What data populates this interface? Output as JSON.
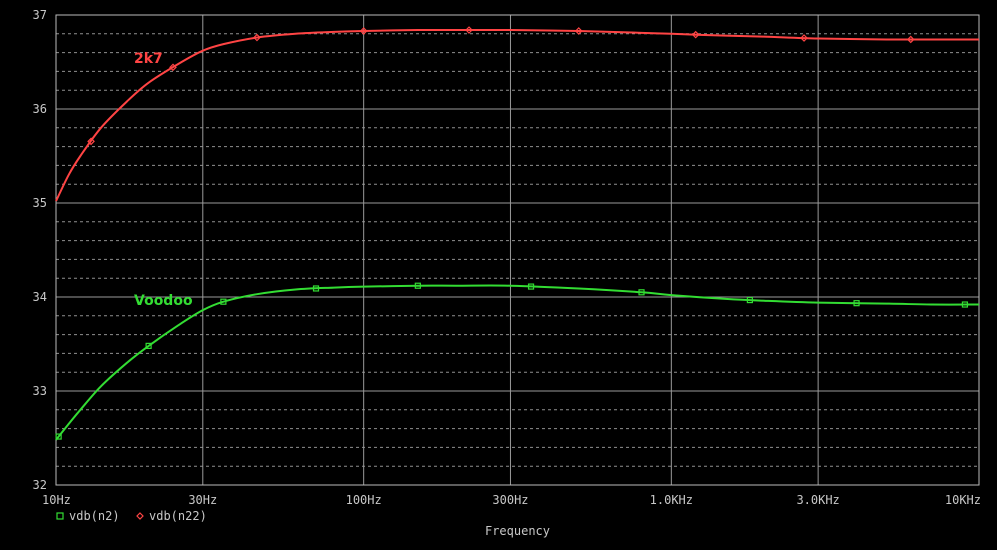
{
  "chart_data": {
    "type": "line",
    "xlabel": "Frequency",
    "x_scale": "log",
    "xlim": [
      10,
      10000
    ],
    "ylim": [
      32,
      37
    ],
    "grid": true,
    "x_ticks": [
      {
        "value": 10,
        "label": "10Hz"
      },
      {
        "value": 30,
        "label": "30Hz"
      },
      {
        "value": 100,
        "label": "100Hz"
      },
      {
        "value": 300,
        "label": "300Hz"
      },
      {
        "value": 1000,
        "label": "1.0KHz"
      },
      {
        "value": 3000,
        "label": "3.0KHz"
      },
      {
        "value": 10000,
        "label": "10KHz"
      }
    ],
    "y_ticks": [
      {
        "value": 32,
        "label": "32"
      },
      {
        "value": 33,
        "label": "33"
      },
      {
        "value": 34,
        "label": "34"
      },
      {
        "value": 35,
        "label": "35"
      },
      {
        "value": 36,
        "label": "36"
      },
      {
        "value": 37,
        "label": "37"
      }
    ],
    "legend_placement": "bottom-left",
    "series": [
      {
        "name": "vdb(n2)",
        "annotation": "Voodoo",
        "color": "#33dd33",
        "marker": "square",
        "x": [
          10,
          11,
          12,
          14,
          17,
          20,
          25,
          30,
          35,
          45,
          60,
          80,
          100,
          150,
          200,
          300,
          500,
          800,
          1000,
          1500,
          2000,
          3000,
          5000,
          7000,
          10000
        ],
        "y": [
          32.48,
          32.65,
          32.8,
          33.05,
          33.3,
          33.48,
          33.7,
          33.86,
          33.95,
          34.03,
          34.08,
          34.1,
          34.11,
          34.12,
          34.12,
          34.12,
          34.09,
          34.05,
          34.02,
          33.98,
          33.96,
          33.94,
          33.93,
          33.92,
          33.92
        ]
      },
      {
        "name": "vdb(n22)",
        "annotation": "2k7",
        "color": "#ff4444",
        "marker": "diamond",
        "x": [
          10,
          11,
          12,
          14,
          17,
          20,
          25,
          30,
          35,
          45,
          60,
          80,
          100,
          150,
          200,
          300,
          500,
          800,
          1000,
          1500,
          2000,
          3000,
          5000,
          7000,
          10000
        ],
        "y": [
          35.02,
          35.3,
          35.5,
          35.8,
          36.08,
          36.28,
          36.48,
          36.62,
          36.69,
          36.76,
          36.8,
          36.82,
          36.83,
          36.84,
          36.84,
          36.84,
          36.83,
          36.81,
          36.8,
          36.78,
          36.77,
          36.75,
          36.74,
          36.74,
          36.74
        ]
      }
    ],
    "markers": [
      {
        "series": 0,
        "x": [
          10.2,
          20,
          35,
          70,
          150,
          350,
          800,
          1800,
          4000,
          9000
        ]
      },
      {
        "series": 1,
        "x": [
          13,
          24,
          45,
          100,
          220,
          500,
          1200,
          2700,
          6000
        ]
      }
    ]
  }
}
